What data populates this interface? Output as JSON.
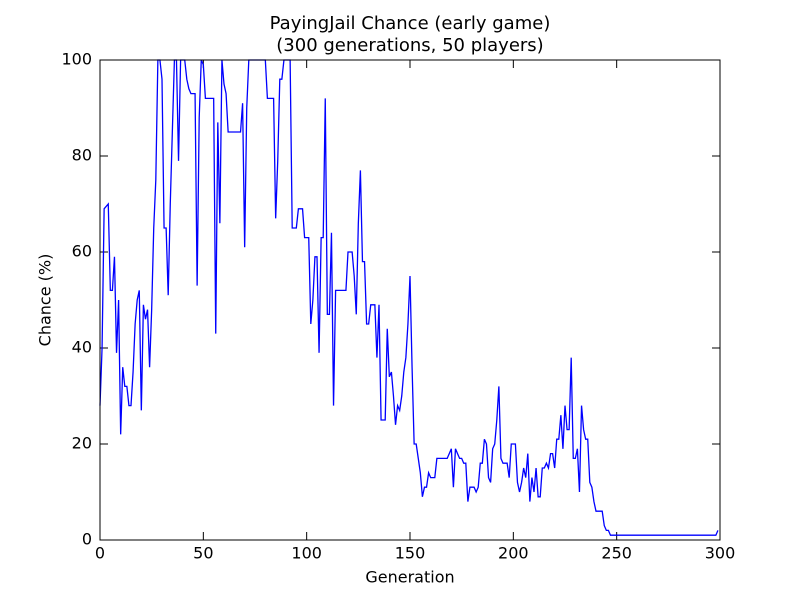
{
  "chart_data": {
    "type": "line",
    "title": "PayingJail Chance (early game)",
    "subtitle": "(300 generations, 50 players)",
    "xlabel": "Generation",
    "ylabel": "Chance (%)",
    "xlim": [
      0,
      300
    ],
    "ylim": [
      0,
      100
    ],
    "xticks": [
      0,
      50,
      100,
      150,
      200,
      250,
      300
    ],
    "yticks": [
      0,
      20,
      40,
      60,
      80,
      100
    ],
    "grid": false,
    "series": [
      {
        "name": "PayingJail",
        "color": "#0000ff",
        "x": [
          0,
          1,
          2,
          4,
          5,
          6,
          7,
          8,
          9,
          10,
          11,
          12,
          13,
          14,
          15,
          16,
          17,
          18,
          19,
          20,
          21,
          22,
          23,
          24,
          25,
          26,
          27,
          28,
          29,
          30,
          31,
          32,
          33,
          34,
          35,
          36,
          37,
          38,
          39,
          41,
          42,
          43,
          44,
          46,
          47,
          48,
          49,
          50,
          51,
          55,
          56,
          57,
          58,
          59,
          60,
          61,
          62,
          68,
          69,
          70,
          71,
          72,
          80,
          81,
          84,
          85,
          86,
          87,
          88,
          89,
          92,
          93,
          95,
          96,
          98,
          99,
          101,
          102,
          103,
          104,
          105,
          106,
          107,
          108,
          109,
          110,
          111,
          112,
          113,
          114,
          119,
          120,
          122,
          123,
          124,
          125,
          126,
          127,
          128,
          129,
          130,
          131,
          133,
          134,
          135,
          136,
          138,
          139,
          140,
          141,
          142,
          143,
          144,
          145,
          146,
          147,
          148,
          149,
          150,
          151,
          152,
          153,
          154,
          155,
          156,
          157,
          158,
          159,
          160,
          162,
          163,
          168,
          169,
          170,
          171,
          172,
          173,
          174,
          175,
          176,
          177,
          178,
          179,
          181,
          182,
          183,
          184,
          185,
          186,
          187,
          188,
          189,
          190,
          191,
          192,
          193,
          194,
          195,
          197,
          198,
          199,
          201,
          202,
          203,
          204,
          205,
          206,
          207,
          208,
          209,
          210,
          211,
          212,
          213,
          214,
          215,
          216,
          217,
          218,
          219,
          220,
          221,
          222,
          223,
          224,
          225,
          226,
          227,
          228,
          229,
          230,
          231,
          232,
          233,
          234,
          235,
          236,
          237,
          238,
          239,
          240,
          243,
          244,
          245,
          246,
          247,
          298,
          299
        ],
        "values": [
          28,
          40,
          69,
          70,
          52,
          52,
          59,
          39,
          50,
          22,
          36,
          32,
          32,
          28,
          28,
          35,
          45,
          50,
          52,
          27,
          49,
          46,
          48,
          36,
          48,
          65,
          75,
          100,
          100,
          96,
          65,
          65,
          51,
          70,
          85,
          100,
          100,
          79,
          100,
          100,
          96,
          94,
          93,
          93,
          53,
          88,
          100,
          99,
          92,
          92,
          43,
          87,
          66,
          100,
          95,
          93,
          85,
          85,
          91,
          61,
          90,
          100,
          100,
          92,
          92,
          67,
          79,
          96,
          96,
          100,
          100,
          65,
          65,
          69,
          69,
          63,
          63,
          45,
          50,
          59,
          59,
          39,
          63,
          63,
          92,
          47,
          47,
          64,
          28,
          52,
          52,
          60,
          60,
          55,
          47,
          66,
          77,
          58,
          58,
          45,
          45,
          49,
          49,
          38,
          49,
          25,
          25,
          44,
          34,
          35,
          30,
          24,
          28,
          27,
          30,
          35,
          38,
          45,
          55,
          36,
          20,
          20,
          17,
          14,
          9,
          11,
          11,
          14,
          13,
          13,
          17,
          17,
          18,
          19,
          11,
          19,
          18,
          17,
          17,
          16,
          16,
          8,
          11,
          11,
          10,
          11,
          16,
          16,
          21,
          20,
          13,
          12,
          19,
          20,
          25,
          32,
          17,
          16,
          16,
          13,
          20,
          20,
          12,
          10,
          12,
          15,
          13,
          18,
          8,
          13,
          10,
          15,
          9,
          9,
          15,
          15,
          16,
          15,
          18,
          18,
          15,
          21,
          21,
          26,
          19,
          28,
          23,
          23,
          38,
          17,
          17,
          19,
          10,
          28,
          23,
          21,
          21,
          12,
          11,
          8,
          6,
          6,
          3,
          2,
          2,
          1,
          1,
          2
        ]
      }
    ]
  }
}
